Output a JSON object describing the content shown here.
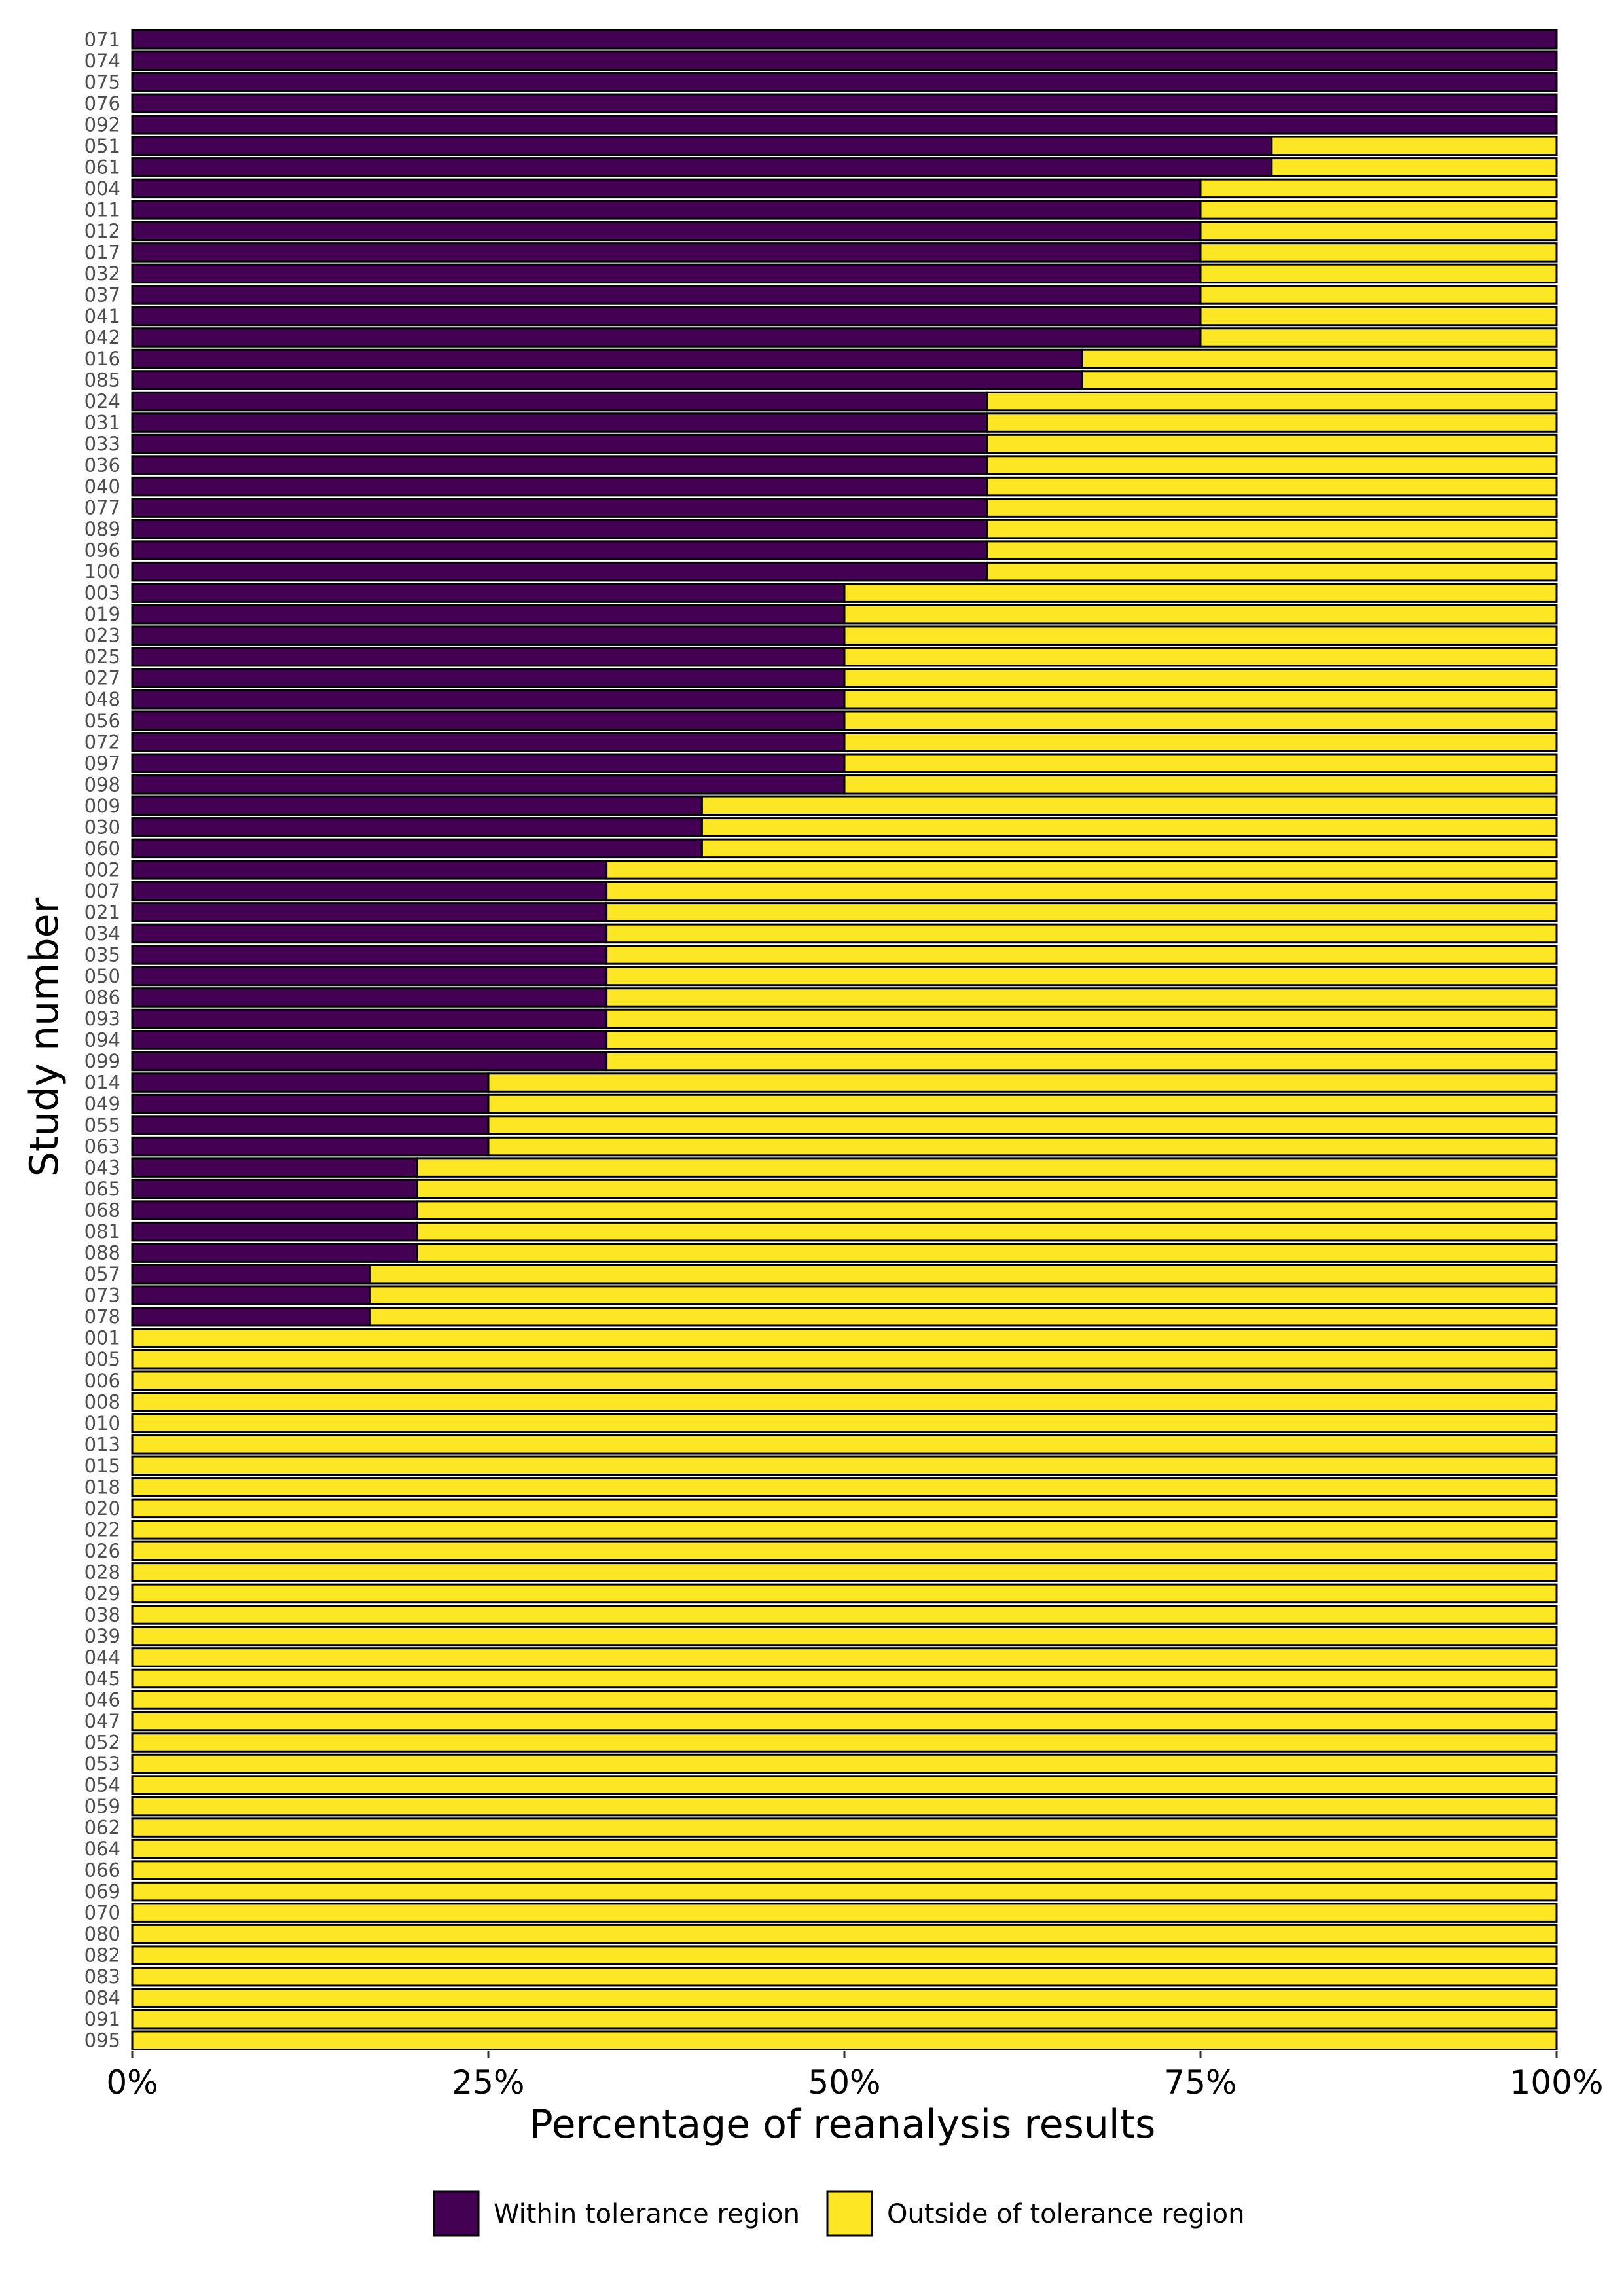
{
  "chart_data": {
    "type": "bar",
    "orientation": "horizontal",
    "stacked": true,
    "xlabel": "Percentage of reanalysis results",
    "ylabel": "Study number",
    "xlim": [
      0,
      1
    ],
    "x_ticks": [
      {
        "value": 0,
        "label": "0%"
      },
      {
        "value": 0.25,
        "label": "25%"
      },
      {
        "value": 0.5,
        "label": "50%"
      },
      {
        "value": 0.75,
        "label": "75%"
      },
      {
        "value": 1,
        "label": "100%"
      }
    ],
    "grid": false,
    "legend_position": "bottom",
    "series": [
      {
        "name": "Within tolerance region",
        "color": "#440154"
      },
      {
        "name": "Outside of tolerance region",
        "color": "#FDE725"
      }
    ],
    "categories": [
      "071",
      "074",
      "075",
      "076",
      "092",
      "051",
      "061",
      "004",
      "011",
      "012",
      "017",
      "032",
      "037",
      "041",
      "042",
      "016",
      "085",
      "024",
      "031",
      "033",
      "036",
      "040",
      "077",
      "089",
      "096",
      "100",
      "003",
      "019",
      "023",
      "025",
      "027",
      "048",
      "056",
      "072",
      "097",
      "098",
      "009",
      "030",
      "060",
      "002",
      "007",
      "021",
      "034",
      "035",
      "050",
      "086",
      "093",
      "094",
      "099",
      "014",
      "049",
      "055",
      "063",
      "043",
      "065",
      "068",
      "081",
      "088",
      "057",
      "073",
      "078",
      "001",
      "005",
      "006",
      "008",
      "010",
      "013",
      "015",
      "018",
      "020",
      "022",
      "026",
      "028",
      "029",
      "038",
      "039",
      "044",
      "045",
      "046",
      "047",
      "052",
      "053",
      "054",
      "059",
      "062",
      "064",
      "066",
      "069",
      "070",
      "080",
      "082",
      "083",
      "084",
      "091",
      "095"
    ],
    "within_fraction": [
      1,
      1,
      1,
      1,
      1,
      0.8,
      0.8,
      0.75,
      0.75,
      0.75,
      0.75,
      0.75,
      0.75,
      0.75,
      0.75,
      0.667,
      0.667,
      0.6,
      0.6,
      0.6,
      0.6,
      0.6,
      0.6,
      0.6,
      0.6,
      0.6,
      0.5,
      0.5,
      0.5,
      0.5,
      0.5,
      0.5,
      0.5,
      0.5,
      0.5,
      0.5,
      0.4,
      0.4,
      0.4,
      0.333,
      0.333,
      0.333,
      0.333,
      0.333,
      0.333,
      0.333,
      0.333,
      0.333,
      0.333,
      0.25,
      0.25,
      0.25,
      0.25,
      0.2,
      0.2,
      0.2,
      0.2,
      0.2,
      0.167,
      0.167,
      0.167,
      0,
      0,
      0,
      0,
      0,
      0,
      0,
      0,
      0,
      0,
      0,
      0,
      0,
      0,
      0,
      0,
      0,
      0,
      0,
      0,
      0,
      0,
      0,
      0,
      0,
      0,
      0,
      0,
      0,
      0,
      0,
      0,
      0,
      0
    ]
  }
}
